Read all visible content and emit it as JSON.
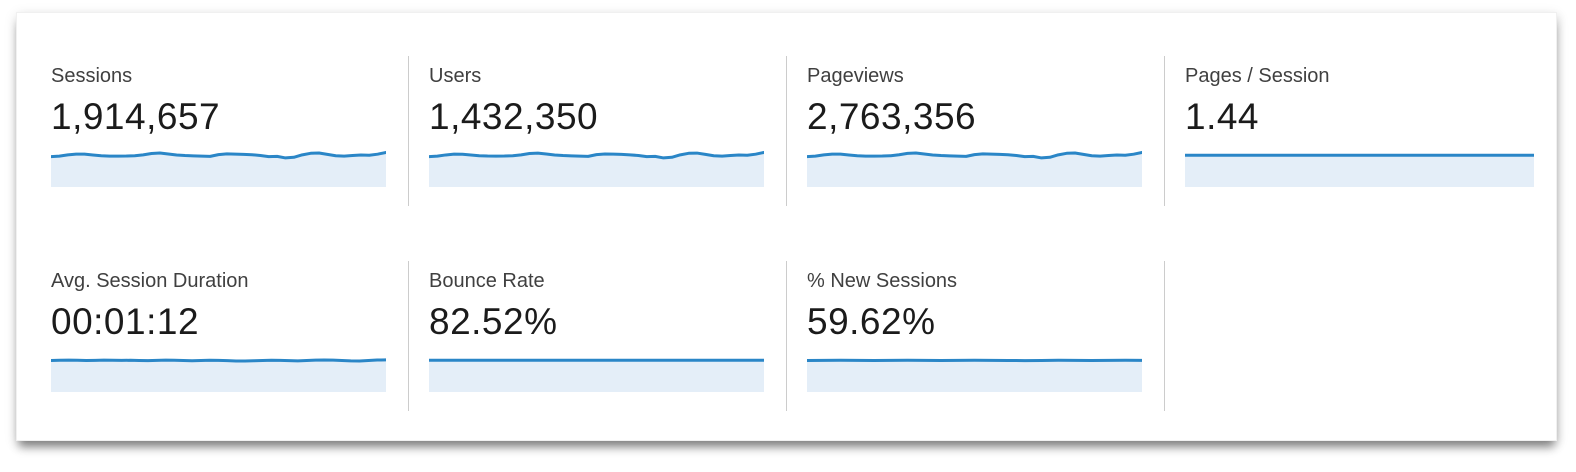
{
  "panel": {
    "name": "analytics-metrics-overview"
  },
  "colors": {
    "spark_line": "#2a86c7",
    "spark_fill": "#e4eef8",
    "divider": "#cccccc",
    "label_text": "#404040",
    "value_text": "#1b1b1b",
    "panel_bg": "#ffffff"
  },
  "cards": [
    {
      "label": "Sessions",
      "value": "1,914,657"
    },
    {
      "label": "Users",
      "value": "1,432,350"
    },
    {
      "label": "Pageviews",
      "value": "2,763,356"
    },
    {
      "label": "Pages / Session",
      "value": "1.44"
    },
    {
      "label": "Avg. Session Duration",
      "value": "00:01:12"
    },
    {
      "label": "Bounce Rate",
      "value": "82.52%"
    },
    {
      "label": "% New Sessions",
      "value": "59.62%"
    }
  ],
  "chart_data": [
    {
      "type": "area",
      "metric": "Sessions",
      "total": "1,914,657",
      "note": "sparkline, normalized 0-1, no axes or gridlines shown",
      "values": [
        0.4,
        0.44,
        0.56,
        0.62,
        0.62,
        0.55,
        0.48,
        0.44,
        0.44,
        0.45,
        0.48,
        0.56,
        0.68,
        0.73,
        0.64,
        0.55,
        0.5,
        0.47,
        0.44,
        0.42,
        0.58,
        0.65,
        0.63,
        0.6,
        0.57,
        0.5,
        0.4,
        0.42,
        0.28,
        0.34,
        0.56,
        0.7,
        0.73,
        0.6,
        0.48,
        0.44,
        0.5,
        0.55,
        0.52,
        0.62,
        0.78
      ]
    },
    {
      "type": "area",
      "metric": "Users",
      "total": "1,432,350",
      "note": "sparkline, normalized 0-1, no axes or gridlines shown",
      "values": [
        0.4,
        0.44,
        0.55,
        0.62,
        0.61,
        0.55,
        0.48,
        0.45,
        0.44,
        0.45,
        0.48,
        0.56,
        0.68,
        0.72,
        0.64,
        0.55,
        0.5,
        0.47,
        0.44,
        0.42,
        0.58,
        0.64,
        0.63,
        0.6,
        0.56,
        0.5,
        0.4,
        0.42,
        0.28,
        0.34,
        0.56,
        0.7,
        0.72,
        0.6,
        0.48,
        0.44,
        0.5,
        0.55,
        0.52,
        0.62,
        0.78
      ]
    },
    {
      "type": "area",
      "metric": "Pageviews",
      "total": "2,763,356",
      "note": "sparkline, normalized 0-1, no axes or gridlines shown",
      "values": [
        0.4,
        0.44,
        0.56,
        0.63,
        0.62,
        0.55,
        0.48,
        0.44,
        0.44,
        0.45,
        0.48,
        0.57,
        0.69,
        0.73,
        0.64,
        0.55,
        0.5,
        0.47,
        0.44,
        0.42,
        0.58,
        0.65,
        0.63,
        0.6,
        0.57,
        0.5,
        0.4,
        0.42,
        0.28,
        0.34,
        0.56,
        0.7,
        0.73,
        0.6,
        0.48,
        0.44,
        0.5,
        0.55,
        0.52,
        0.62,
        0.78
      ]
    },
    {
      "type": "area",
      "metric": "Pages / Session",
      "total": "1.44",
      "note": "flat sparkline",
      "values": [
        0.52,
        0.52,
        0.52,
        0.52,
        0.52,
        0.52,
        0.52,
        0.52,
        0.52,
        0.52,
        0.52,
        0.52,
        0.52,
        0.52,
        0.52,
        0.52,
        0.52,
        0.52,
        0.52,
        0.52,
        0.52
      ]
    },
    {
      "type": "area",
      "metric": "Avg. Session Duration",
      "total": "00:01:12",
      "note": "near-flat sparkline with slight undulation",
      "values": [
        0.5,
        0.52,
        0.53,
        0.52,
        0.5,
        0.51,
        0.53,
        0.52,
        0.51,
        0.52,
        0.5,
        0.49,
        0.51,
        0.53,
        0.52,
        0.5,
        0.48,
        0.5,
        0.52,
        0.51,
        0.49,
        0.46,
        0.45,
        0.48,
        0.5,
        0.52,
        0.51,
        0.49,
        0.47,
        0.5,
        0.53,
        0.55,
        0.53,
        0.5,
        0.47,
        0.46,
        0.5,
        0.54,
        0.56
      ]
    },
    {
      "type": "area",
      "metric": "Bounce Rate",
      "total": "82.52%",
      "note": "flat sparkline",
      "values": [
        0.52,
        0.52,
        0.52,
        0.52,
        0.52,
        0.52,
        0.52,
        0.52,
        0.52,
        0.52,
        0.52,
        0.52,
        0.52,
        0.52,
        0.52,
        0.52,
        0.52,
        0.52,
        0.52,
        0.52,
        0.52
      ]
    },
    {
      "type": "area",
      "metric": "% New Sessions",
      "total": "59.62%",
      "note": "near-flat sparkline",
      "values": [
        0.5,
        0.51,
        0.52,
        0.51,
        0.5,
        0.51,
        0.52,
        0.51,
        0.5,
        0.51,
        0.52,
        0.51,
        0.5,
        0.49,
        0.5,
        0.52,
        0.51,
        0.5,
        0.51,
        0.52,
        0.51
      ]
    }
  ]
}
